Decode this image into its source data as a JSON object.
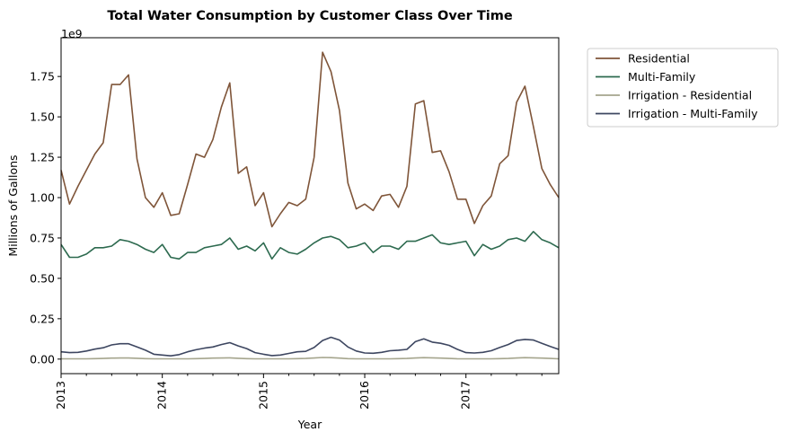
{
  "chart_data": {
    "type": "line",
    "title": "Total Water Consumption by Customer Class Over Time",
    "xlabel": "Year",
    "ylabel": "Millions of Gallons",
    "offset_label": "1e9",
    "x_start": "2013-01",
    "x_end": "2017-12",
    "frequency": "monthly",
    "x_ticks": [
      "2013",
      "2014",
      "2015",
      "2016",
      "2017"
    ],
    "y_ticks": [
      "0.00",
      "0.25",
      "0.50",
      "0.75",
      "1.00",
      "1.25",
      "1.50",
      "1.75"
    ],
    "ylim": [
      -0.09,
      1.99
    ],
    "grid": false,
    "legend_position": "outside top-right",
    "series": [
      {
        "name": "Residential",
        "color": "#7f5539",
        "values": [
          1.17,
          0.96,
          1.07,
          1.17,
          1.27,
          1.34,
          1.7,
          1.7,
          1.76,
          1.24,
          1.0,
          0.94,
          1.03,
          0.89,
          0.9,
          1.08,
          1.27,
          1.25,
          1.36,
          1.56,
          1.71,
          1.15,
          1.19,
          0.95,
          1.03,
          0.82,
          0.9,
          0.97,
          0.95,
          0.99,
          1.25,
          1.9,
          1.78,
          1.54,
          1.09,
          0.93,
          0.96,
          0.92,
          1.01,
          1.02,
          0.94,
          1.07,
          1.58,
          1.6,
          1.28,
          1.29,
          1.16,
          0.99,
          0.99,
          0.84,
          0.95,
          1.01,
          1.21,
          1.26,
          1.59,
          1.69,
          1.44,
          1.18,
          1.08,
          1.0
        ]
      },
      {
        "name": "Multi-Family",
        "color": "#2d6a4f",
        "values": [
          0.71,
          0.63,
          0.63,
          0.65,
          0.69,
          0.69,
          0.7,
          0.74,
          0.73,
          0.71,
          0.68,
          0.66,
          0.71,
          0.63,
          0.62,
          0.66,
          0.66,
          0.69,
          0.7,
          0.71,
          0.75,
          0.68,
          0.7,
          0.67,
          0.72,
          0.62,
          0.69,
          0.66,
          0.65,
          0.68,
          0.72,
          0.75,
          0.76,
          0.74,
          0.69,
          0.7,
          0.72,
          0.66,
          0.7,
          0.7,
          0.68,
          0.73,
          0.73,
          0.75,
          0.77,
          0.72,
          0.71,
          0.72,
          0.73,
          0.64,
          0.71,
          0.68,
          0.7,
          0.74,
          0.75,
          0.73,
          0.79,
          0.74,
          0.72,
          0.69
        ]
      },
      {
        "name": "Irrigation - Residential",
        "color": "#a5a58d",
        "values": [
          0.002,
          0.002,
          0.002,
          0.002,
          0.003,
          0.004,
          0.006,
          0.007,
          0.007,
          0.005,
          0.003,
          0.002,
          0.002,
          0.002,
          0.002,
          0.002,
          0.003,
          0.004,
          0.006,
          0.007,
          0.008,
          0.005,
          0.003,
          0.002,
          0.002,
          0.002,
          0.002,
          0.002,
          0.003,
          0.004,
          0.007,
          0.01,
          0.009,
          0.006,
          0.003,
          0.002,
          0.002,
          0.002,
          0.002,
          0.002,
          0.003,
          0.004,
          0.007,
          0.009,
          0.008,
          0.006,
          0.004,
          0.002,
          0.002,
          0.002,
          0.002,
          0.002,
          0.003,
          0.004,
          0.007,
          0.009,
          0.008,
          0.006,
          0.004,
          0.002
        ]
      },
      {
        "name": "Irrigation - Multi-Family",
        "color": "#3d4660",
        "values": [
          0.045,
          0.04,
          0.042,
          0.05,
          0.062,
          0.07,
          0.088,
          0.095,
          0.095,
          0.075,
          0.055,
          0.03,
          0.025,
          0.02,
          0.028,
          0.045,
          0.058,
          0.068,
          0.075,
          0.09,
          0.102,
          0.082,
          0.065,
          0.04,
          0.03,
          0.022,
          0.025,
          0.035,
          0.045,
          0.048,
          0.072,
          0.115,
          0.135,
          0.118,
          0.075,
          0.05,
          0.038,
          0.036,
          0.042,
          0.052,
          0.055,
          0.06,
          0.108,
          0.125,
          0.105,
          0.098,
          0.085,
          0.06,
          0.04,
          0.038,
          0.042,
          0.052,
          0.072,
          0.09,
          0.115,
          0.122,
          0.118,
          0.098,
          0.078,
          0.06
        ]
      }
    ]
  }
}
